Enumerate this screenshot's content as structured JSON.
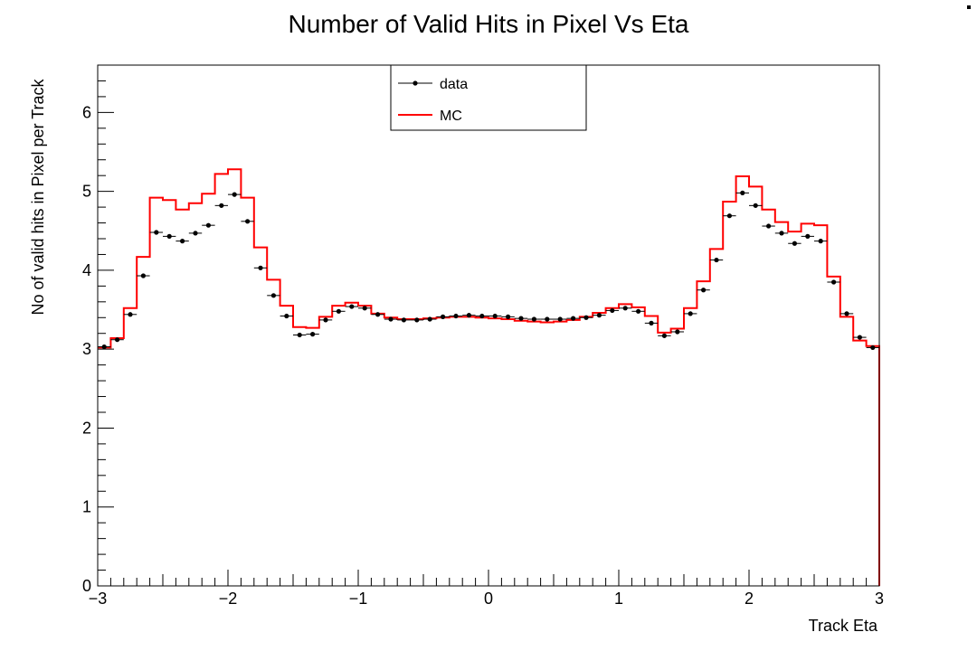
{
  "chart_data": {
    "type": "line",
    "title": "Number of Valid Hits in Pixel Vs Eta",
    "xlabel": "Track Eta",
    "ylabel": "No of valid hits in Pixel per Track",
    "xlim": [
      -3,
      3
    ],
    "ylim": [
      0,
      6.6
    ],
    "x_ticks": [
      "−3",
      "−2",
      "−1",
      "0",
      "1",
      "2",
      "3"
    ],
    "y_ticks": [
      "0",
      "1",
      "2",
      "3",
      "4",
      "5",
      "6"
    ],
    "legend_position": "top-center",
    "grid": false,
    "bin_width": 0.1,
    "x": [
      -2.95,
      -2.85,
      -2.75,
      -2.65,
      -2.55,
      -2.45,
      -2.35,
      -2.25,
      -2.15,
      -2.05,
      -1.95,
      -1.85,
      -1.75,
      -1.65,
      -1.55,
      -1.45,
      -1.35,
      -1.25,
      -1.15,
      -1.05,
      -0.95,
      -0.85,
      -0.75,
      -0.65,
      -0.55,
      -0.45,
      -0.35,
      -0.25,
      -0.15,
      -0.05,
      0.05,
      0.15,
      0.25,
      0.35,
      0.45,
      0.55,
      0.65,
      0.75,
      0.85,
      0.95,
      1.05,
      1.15,
      1.25,
      1.35,
      1.45,
      1.55,
      1.65,
      1.75,
      1.85,
      1.95,
      2.05,
      2.15,
      2.25,
      2.35,
      2.45,
      2.55,
      2.65,
      2.75,
      2.85,
      2.95
    ],
    "series": [
      {
        "name": "data",
        "style": "markers",
        "color": "#000000",
        "values": [
          3.03,
          3.12,
          3.44,
          3.93,
          4.48,
          4.43,
          4.37,
          4.47,
          4.57,
          4.82,
          4.96,
          4.62,
          4.03,
          3.68,
          3.42,
          3.18,
          3.19,
          3.37,
          3.48,
          3.54,
          3.52,
          3.44,
          3.38,
          3.37,
          3.37,
          3.38,
          3.41,
          3.42,
          3.43,
          3.42,
          3.42,
          3.41,
          3.39,
          3.38,
          3.38,
          3.38,
          3.39,
          3.4,
          3.43,
          3.49,
          3.52,
          3.48,
          3.33,
          3.17,
          3.22,
          3.45,
          3.75,
          4.13,
          4.69,
          4.98,
          4.82,
          4.56,
          4.47,
          4.34,
          4.43,
          4.37,
          3.85,
          3.45,
          3.15,
          3.02
        ]
      },
      {
        "name": "MC",
        "style": "step",
        "color": "#ff0000",
        "values": [
          3.02,
          3.14,
          3.52,
          4.17,
          4.92,
          4.89,
          4.77,
          4.85,
          4.97,
          5.22,
          5.28,
          4.92,
          4.29,
          3.88,
          3.55,
          3.28,
          3.27,
          3.41,
          3.55,
          3.59,
          3.55,
          3.45,
          3.4,
          3.38,
          3.38,
          3.39,
          3.4,
          3.41,
          3.41,
          3.4,
          3.39,
          3.38,
          3.36,
          3.35,
          3.34,
          3.35,
          3.37,
          3.41,
          3.46,
          3.52,
          3.57,
          3.53,
          3.42,
          3.21,
          3.26,
          3.52,
          3.86,
          4.27,
          4.87,
          5.19,
          5.06,
          4.77,
          4.61,
          4.49,
          4.59,
          4.57,
          3.92,
          3.41,
          3.11,
          3.04
        ]
      }
    ]
  }
}
